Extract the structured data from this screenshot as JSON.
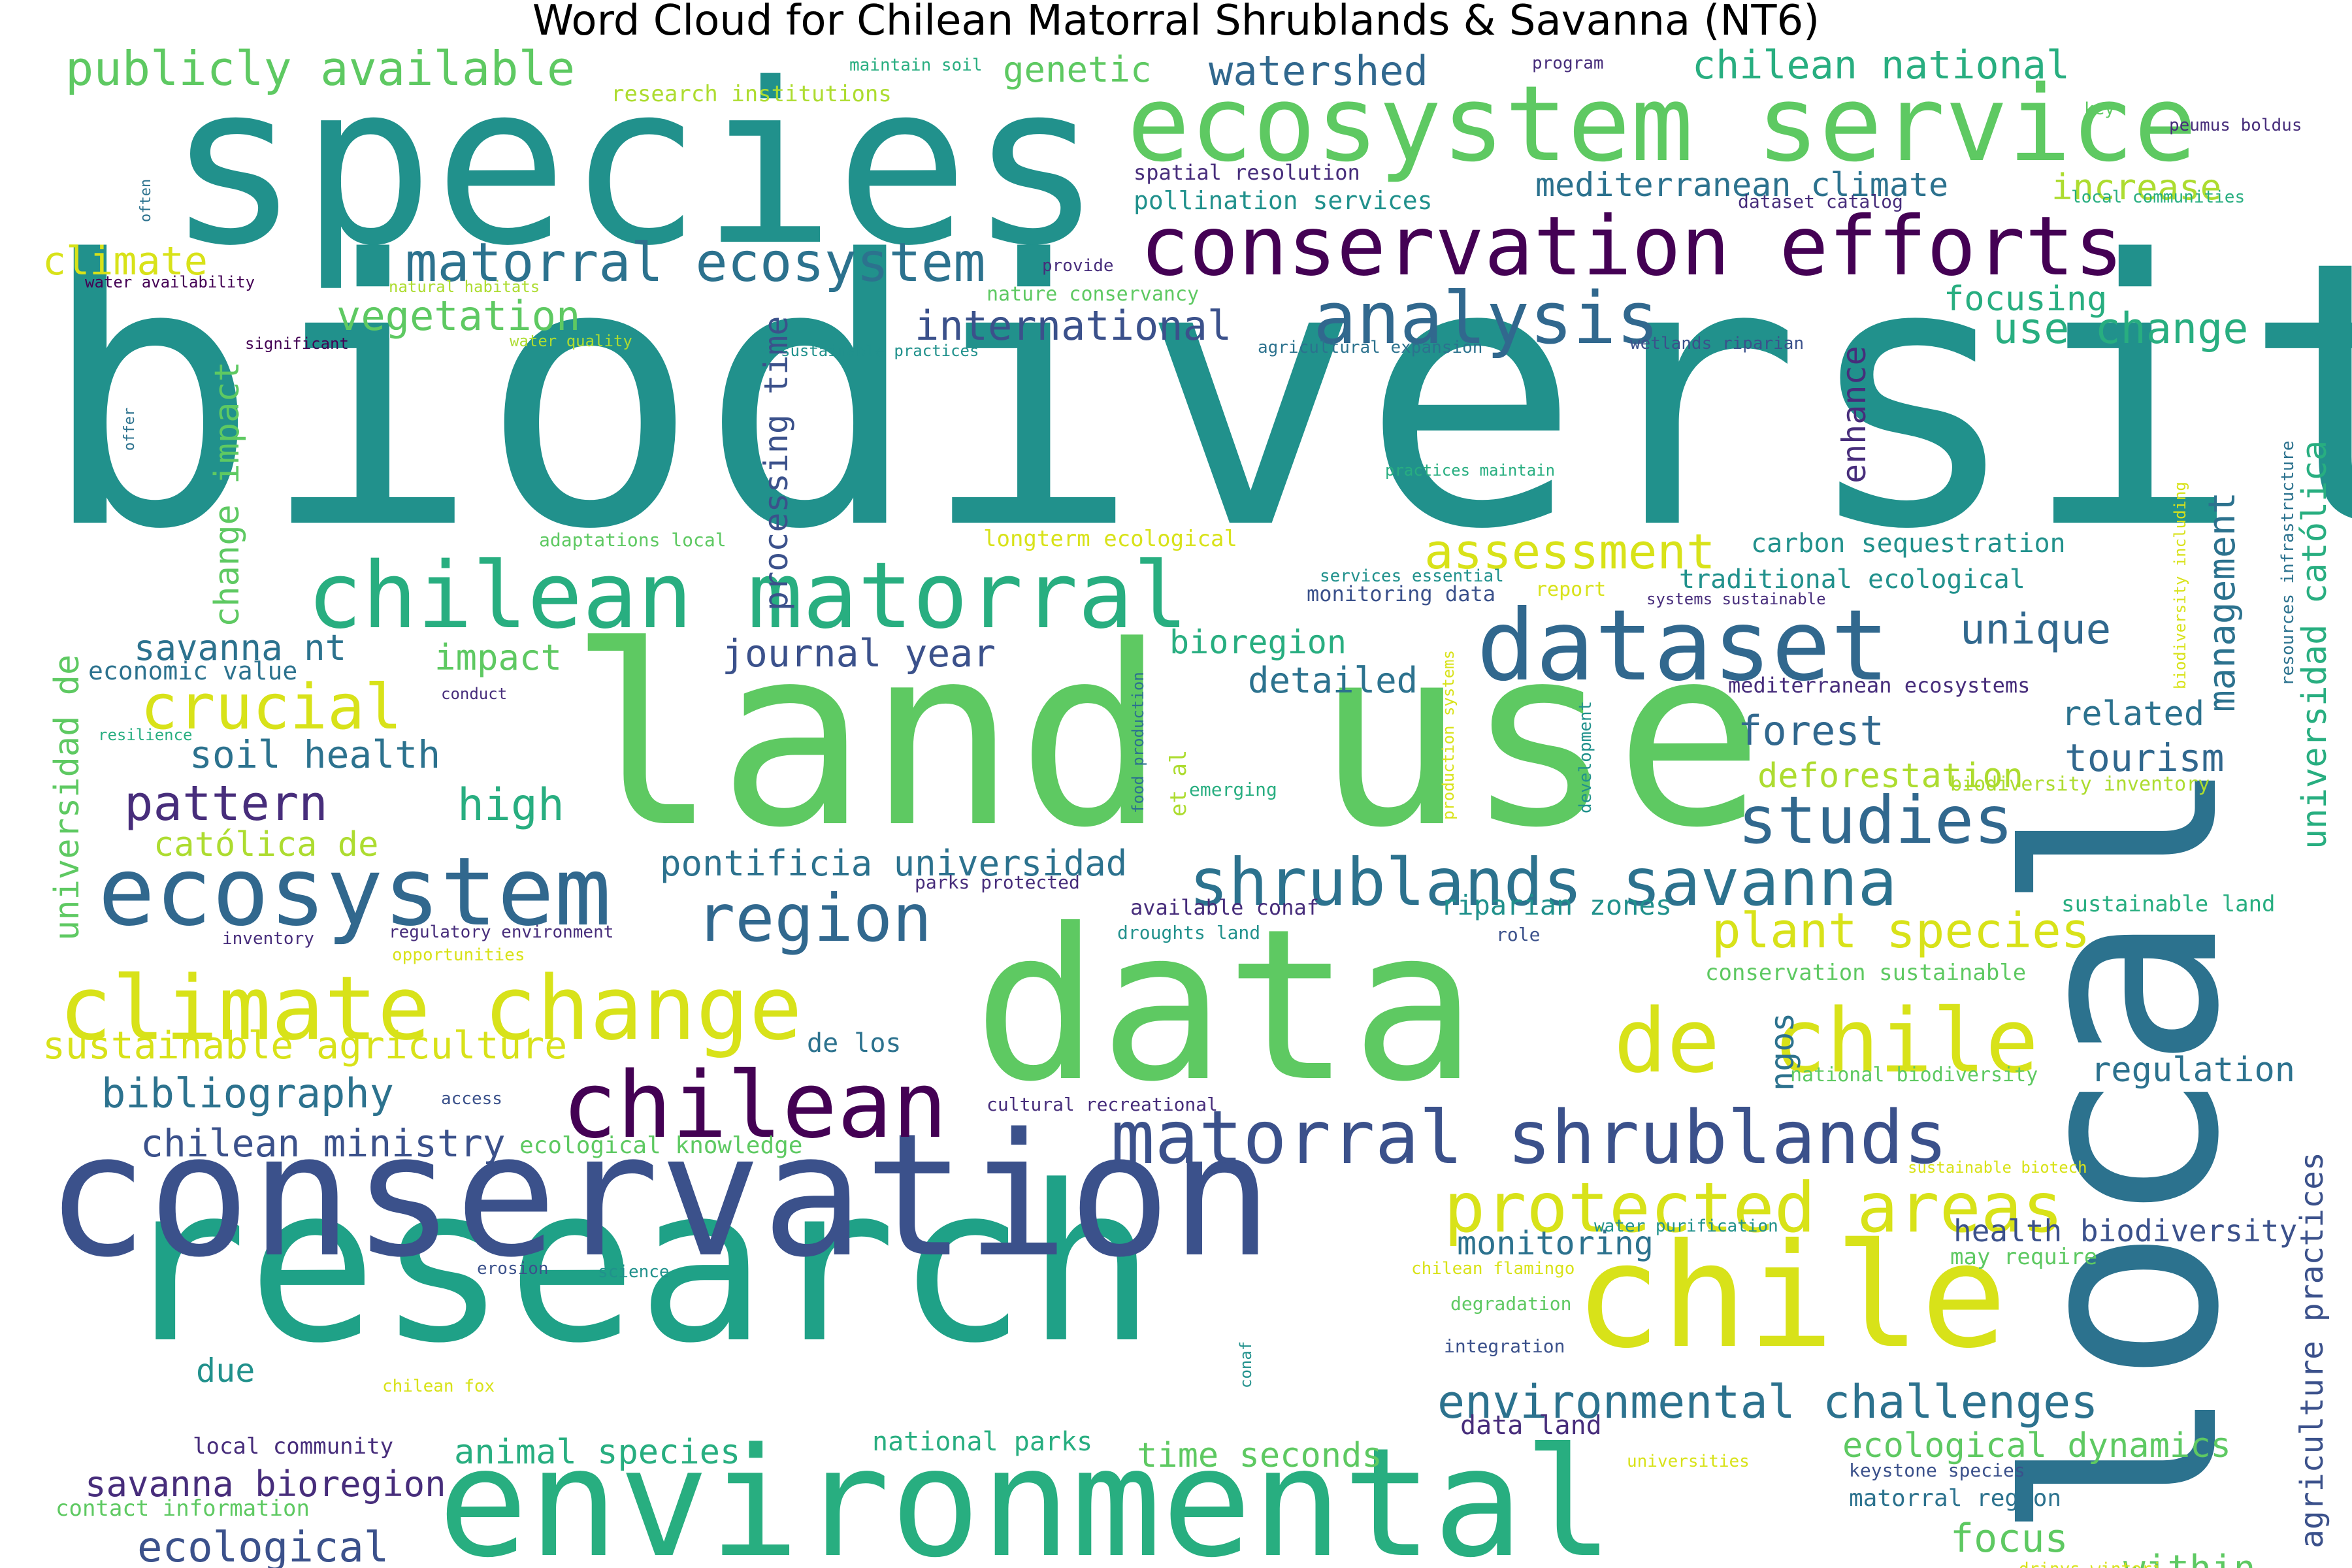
{
  "title": "Word Cloud for Chilean Matorral Shrublands & Savanna (NT6)",
  "colors": {
    "v1": "#440154",
    "v2": "#472d7b",
    "v3": "#3b518b",
    "v4": "#2c728e",
    "v5": "#21918c",
    "v6": "#28ae80",
    "v7": "#5ec962",
    "v8": "#addc30",
    "v9": "#d8e219",
    "v10": "#31688e",
    "v11": "#1fa187",
    "v12": "#7ad151"
  },
  "words": [
    {
      "id": "w-biodiversity",
      "text": "biodiversity",
      "c": "v5"
    },
    {
      "id": "w-species",
      "text": "species",
      "c": "v5"
    },
    {
      "id": "w-land-use",
      "text": "land use",
      "c": "v7"
    },
    {
      "id": "w-research",
      "text": "research",
      "c": "v11"
    },
    {
      "id": "w-local",
      "text": "local",
      "c": "v4"
    },
    {
      "id": "w-data",
      "text": "data",
      "c": "v7"
    },
    {
      "id": "w-conservation",
      "text": "conservation",
      "c": "v3"
    },
    {
      "id": "w-environmental",
      "text": "environmental",
      "c": "v6"
    },
    {
      "id": "w-ecosystem-service",
      "text": "ecosystem service",
      "c": "v7"
    },
    {
      "id": "w-conservation-efforts",
      "text": "conservation efforts",
      "c": "v1"
    },
    {
      "id": "w-chile",
      "text": "chile",
      "c": "v9"
    },
    {
      "id": "w-chilean-matorral",
      "text": "chilean matorral",
      "c": "v6"
    },
    {
      "id": "w-dataset",
      "text": "dataset",
      "c": "v10"
    },
    {
      "id": "w-ecosystem",
      "text": "ecosystem",
      "c": "v10"
    },
    {
      "id": "w-climate-change",
      "text": "climate change",
      "c": "v9"
    },
    {
      "id": "w-chilean",
      "text": "chilean",
      "c": "v1"
    },
    {
      "id": "w-de-chile",
      "text": "de chile",
      "c": "v9"
    },
    {
      "id": "w-matorral-shrublands",
      "text": "matorral shrublands",
      "c": "v3"
    },
    {
      "id": "w-protected-areas",
      "text": "protected areas",
      "c": "v9"
    },
    {
      "id": "w-shrublands-savanna",
      "text": "shrublands savanna",
      "c": "v4"
    },
    {
      "id": "w-analysis",
      "text": "analysis",
      "c": "v10"
    },
    {
      "id": "w-matorral-ecosystem",
      "text": "matorral ecosystem",
      "c": "v4"
    },
    {
      "id": "w-studies",
      "text": "studies",
      "c": "v10"
    },
    {
      "id": "w-region",
      "text": "region",
      "c": "v10"
    },
    {
      "id": "w-crucial",
      "text": "crucial",
      "c": "v9"
    },
    {
      "id": "w-publicly-available",
      "text": "publicly available",
      "c": "v7"
    },
    {
      "id": "w-plant-species",
      "text": "plant species",
      "c": "v9"
    },
    {
      "id": "w-environmental-challenges",
      "text": "environmental challenges",
      "c": "v4"
    },
    {
      "id": "w-assessment",
      "text": "assessment",
      "c": "v9"
    },
    {
      "id": "w-chilean-national",
      "text": "chilean national",
      "c": "v6"
    },
    {
      "id": "w-watershed",
      "text": "watershed",
      "c": "v10"
    },
    {
      "id": "w-use-change",
      "text": "use change",
      "c": "v6"
    },
    {
      "id": "w-vegetation",
      "text": "vegetation",
      "c": "v7"
    },
    {
      "id": "w-international",
      "text": "international",
      "c": "v3"
    },
    {
      "id": "w-pattern",
      "text": "pattern",
      "c": "v2"
    },
    {
      "id": "w-sustainable-agriculture",
      "text": "sustainable agriculture",
      "c": "v9"
    },
    {
      "id": "w-bibliography",
      "text": "bibliography",
      "c": "v4"
    },
    {
      "id": "w-chilean-ministry",
      "text": "chilean ministry",
      "c": "v3"
    },
    {
      "id": "w-ecological",
      "text": "ecological",
      "c": "v3"
    },
    {
      "id": "w-savanna-bioregion",
      "text": "savanna bioregion",
      "c": "v2"
    },
    {
      "id": "w-animal-species",
      "text": "animal species",
      "c": "v6"
    },
    {
      "id": "w-time-seconds",
      "text": "time seconds",
      "c": "v7"
    },
    {
      "id": "w-ecological-dynamics",
      "text": "ecological dynamics",
      "c": "v7"
    },
    {
      "id": "w-focus",
      "text": "focus",
      "c": "v7"
    },
    {
      "id": "w-within",
      "text": "within",
      "c": "v7"
    },
    {
      "id": "w-journal-year",
      "text": "journal year",
      "c": "v3"
    },
    {
      "id": "w-pontificia-universidad",
      "text": "pontificia universidad",
      "c": "v4"
    },
    {
      "id": "w-soil-health",
      "text": "soil health",
      "c": "v4"
    },
    {
      "id": "w-high",
      "text": "high",
      "c": "v6"
    },
    {
      "id": "w-impact",
      "text": "impact",
      "c": "v7"
    },
    {
      "id": "w-savanna-nt",
      "text": "savanna nt",
      "c": "v4"
    },
    {
      "id": "w-catolica-de",
      "text": "católica de",
      "c": "v8"
    },
    {
      "id": "w-climate",
      "text": "climate",
      "c": "v9"
    },
    {
      "id": "w-genetic",
      "text": "genetic",
      "c": "v7"
    },
    {
      "id": "w-mediterranean-climate",
      "text": "mediterranean climate",
      "c": "v4"
    },
    {
      "id": "w-increase",
      "text": "increase",
      "c": "v8"
    },
    {
      "id": "w-focusing",
      "text": "focusing",
      "c": "v6"
    },
    {
      "id": "w-management",
      "text": "management",
      "c": "v4"
    },
    {
      "id": "w-unique",
      "text": "unique",
      "c": "v10"
    },
    {
      "id": "w-forest",
      "text": "forest",
      "c": "v10"
    },
    {
      "id": "w-tourism",
      "text": "tourism",
      "c": "v10"
    },
    {
      "id": "w-related",
      "text": "related",
      "c": "v4"
    },
    {
      "id": "w-deforestation",
      "text": "deforestation",
      "c": "v8"
    },
    {
      "id": "w-regulation",
      "text": "regulation",
      "c": "v4"
    },
    {
      "id": "w-health-biodiversity",
      "text": "health biodiversity",
      "c": "v3"
    },
    {
      "id": "w-monitoring",
      "text": "monitoring",
      "c": "v4"
    },
    {
      "id": "w-detailed",
      "text": "detailed",
      "c": "v4"
    },
    {
      "id": "w-bioregion",
      "text": "bioregion",
      "c": "v6"
    },
    {
      "id": "w-universidad-catolica",
      "text": "universidad católica",
      "c": "v6"
    },
    {
      "id": "w-agriculture-practices",
      "text": "agriculture practices",
      "c": "v3"
    },
    {
      "id": "w-universidad-de",
      "text": "universidad de",
      "c": "v7"
    },
    {
      "id": "w-change-impact",
      "text": "change impact",
      "c": "v7"
    },
    {
      "id": "w-processing-time",
      "text": "processing time",
      "c": "v3"
    },
    {
      "id": "w-enhance",
      "text": "enhance",
      "c": "v2"
    },
    {
      "id": "w-ngos",
      "text": "ngos",
      "c": "v4"
    },
    {
      "id": "w-due",
      "text": "due",
      "c": "v5"
    },
    {
      "id": "w-local-community",
      "text": "local community",
      "c": "v2"
    },
    {
      "id": "w-de-los",
      "text": "de los",
      "c": "v4"
    },
    {
      "id": "w-national-parks",
      "text": "national parks",
      "c": "v6"
    },
    {
      "id": "w-data-land",
      "text": "data land",
      "c": "v2"
    },
    {
      "id": "w-matorral-region",
      "text": "matorral region",
      "c": "v4"
    },
    {
      "id": "w-riparian-zones",
      "text": "riparian zones",
      "c": "v5"
    },
    {
      "id": "w-carbon-sequestration",
      "text": "carbon sequestration",
      "c": "v5"
    },
    {
      "id": "w-traditional-ecological",
      "text": "traditional ecological",
      "c": "v5"
    },
    {
      "id": "w-pollination-services",
      "text": "pollination services",
      "c": "v5"
    },
    {
      "id": "w-spatial-resolution",
      "text": "spatial resolution",
      "c": "v2"
    },
    {
      "id": "w-research-institutions",
      "text": "research institutions",
      "c": "v8"
    },
    {
      "id": "w-maintain-soil",
      "text": "maintain soil",
      "c": "v6"
    },
    {
      "id": "w-economic-value",
      "text": "economic value",
      "c": "v4"
    },
    {
      "id": "w-mediterranean-ecosystems",
      "text": "mediterranean ecosystems",
      "c": "v2"
    },
    {
      "id": "w-biodiversity-inventory",
      "text": "biodiversity inventory",
      "c": "v8"
    },
    {
      "id": "w-sustainable-land",
      "text": "sustainable land",
      "c": "v6"
    },
    {
      "id": "w-conservation-sustainable",
      "text": "conservation sustainable",
      "c": "v7"
    },
    {
      "id": "w-national-biodiversity",
      "text": "national biodiversity",
      "c": "v7"
    },
    {
      "id": "w-may-require",
      "text": "may require",
      "c": "v7"
    },
    {
      "id": "w-water-purification",
      "text": "water purification",
      "c": "v5"
    },
    {
      "id": "w-available-conaf",
      "text": "available conaf",
      "c": "v2"
    },
    {
      "id": "w-ecological-knowledge",
      "text": "ecological knowledge",
      "c": "v7"
    },
    {
      "id": "w-cultural-recreational",
      "text": "cultural recreational",
      "c": "v2"
    },
    {
      "id": "w-keystone-species",
      "text": "keystone species",
      "c": "v3"
    },
    {
      "id": "w-contact-information",
      "text": "contact information",
      "c": "v7"
    },
    {
      "id": "w-dataset-catalog",
      "text": "dataset catalog",
      "c": "v2"
    },
    {
      "id": "w-local-communities",
      "text": "local communities",
      "c": "v6"
    },
    {
      "id": "w-peumus-boldus",
      "text": "peumus boldus",
      "c": "v2"
    },
    {
      "id": "w-program",
      "text": "program",
      "c": "v2"
    },
    {
      "id": "w-key",
      "text": "key",
      "c": "v7"
    },
    {
      "id": "w-water-availability",
      "text": "water availability",
      "c": "v1"
    },
    {
      "id": "w-natural-habitats",
      "text": "natural habitats",
      "c": "v8"
    },
    {
      "id": "w-significant",
      "text": "significant",
      "c": "v1"
    },
    {
      "id": "w-water-quality",
      "text": "water quality",
      "c": "v8"
    },
    {
      "id": "w-provide",
      "text": "provide",
      "c": "v2"
    },
    {
      "id": "w-nature-conservancy",
      "text": "nature conservancy",
      "c": "v7"
    },
    {
      "id": "w-sustainable-practices",
      "text": "sustainable practices",
      "c": "v5"
    },
    {
      "id": "w-agricultural-expansion",
      "text": "agricultural expansion",
      "c": "v4"
    },
    {
      "id": "w-wetlands-riparian",
      "text": "wetlands riparian",
      "c": "v3"
    },
    {
      "id": "w-practices-maintain",
      "text": "practices maintain",
      "c": "v6"
    },
    {
      "id": "w-adaptations-local",
      "text": "adaptations local",
      "c": "v7"
    },
    {
      "id": "w-longterm-ecological",
      "text": "longterm ecological",
      "c": "v9"
    },
    {
      "id": "w-services-essential",
      "text": "services essential",
      "c": "v5"
    },
    {
      "id": "w-monitoring-data",
      "text": "monitoring data",
      "c": "v3"
    },
    {
      "id": "w-report",
      "text": "report",
      "c": "v9"
    },
    {
      "id": "w-systems-sustainable",
      "text": "systems sustainable",
      "c": "v2"
    },
    {
      "id": "w-conduct",
      "text": "conduct",
      "c": "v2"
    },
    {
      "id": "w-resilience",
      "text": "resilience",
      "c": "v6"
    },
    {
      "id": "w-emerging",
      "text": "emerging",
      "c": "v6"
    },
    {
      "id": "w-parks-protected",
      "text": "parks protected",
      "c": "v2"
    },
    {
      "id": "w-droughts-land",
      "text": "droughts land",
      "c": "v5"
    },
    {
      "id": "w-role",
      "text": "role",
      "c": "v3"
    },
    {
      "id": "w-inventory",
      "text": "inventory",
      "c": "v2"
    },
    {
      "id": "w-regulatory-environment",
      "text": "regulatory environment",
      "c": "v2"
    },
    {
      "id": "w-opportunities",
      "text": "opportunities",
      "c": "v9"
    },
    {
      "id": "w-access",
      "text": "access",
      "c": "v3"
    },
    {
      "id": "w-erosion",
      "text": "erosion",
      "c": "v3"
    },
    {
      "id": "w-science",
      "text": "science",
      "c": "v5"
    },
    {
      "id": "w-chilean-flamingo",
      "text": "chilean flamingo",
      "c": "v9"
    },
    {
      "id": "w-degradation",
      "text": "degradation",
      "c": "v7"
    },
    {
      "id": "w-integration",
      "text": "integration",
      "c": "v3"
    },
    {
      "id": "w-chilean-fox",
      "text": "chilean fox",
      "c": "v9"
    },
    {
      "id": "w-universities",
      "text": "universities",
      "c": "v9"
    },
    {
      "id": "w-drinys-winteri",
      "text": "drinys winteri",
      "c": "v9"
    },
    {
      "id": "w-sustainable-biotech",
      "text": "sustainable biotech",
      "c": "v9"
    },
    {
      "id": "w-often",
      "text": "often",
      "c": "v4"
    },
    {
      "id": "w-offer",
      "text": "offer",
      "c": "v4"
    },
    {
      "id": "w-et-al",
      "text": "et al",
      "c": "v8"
    },
    {
      "id": "w-food-production",
      "text": "food production",
      "c": "v4"
    },
    {
      "id": "w-production-systems",
      "text": "production systems",
      "c": "v9"
    },
    {
      "id": "w-development",
      "text": "development",
      "c": "v5"
    },
    {
      "id": "w-conaf",
      "text": "conaf",
      "c": "v5"
    },
    {
      "id": "w-biodiversity-including",
      "text": "biodiversity including",
      "c": "v9"
    },
    {
      "id": "w-resources-infrastructure",
      "text": "resources infrastructure",
      "c": "v4"
    }
  ]
}
